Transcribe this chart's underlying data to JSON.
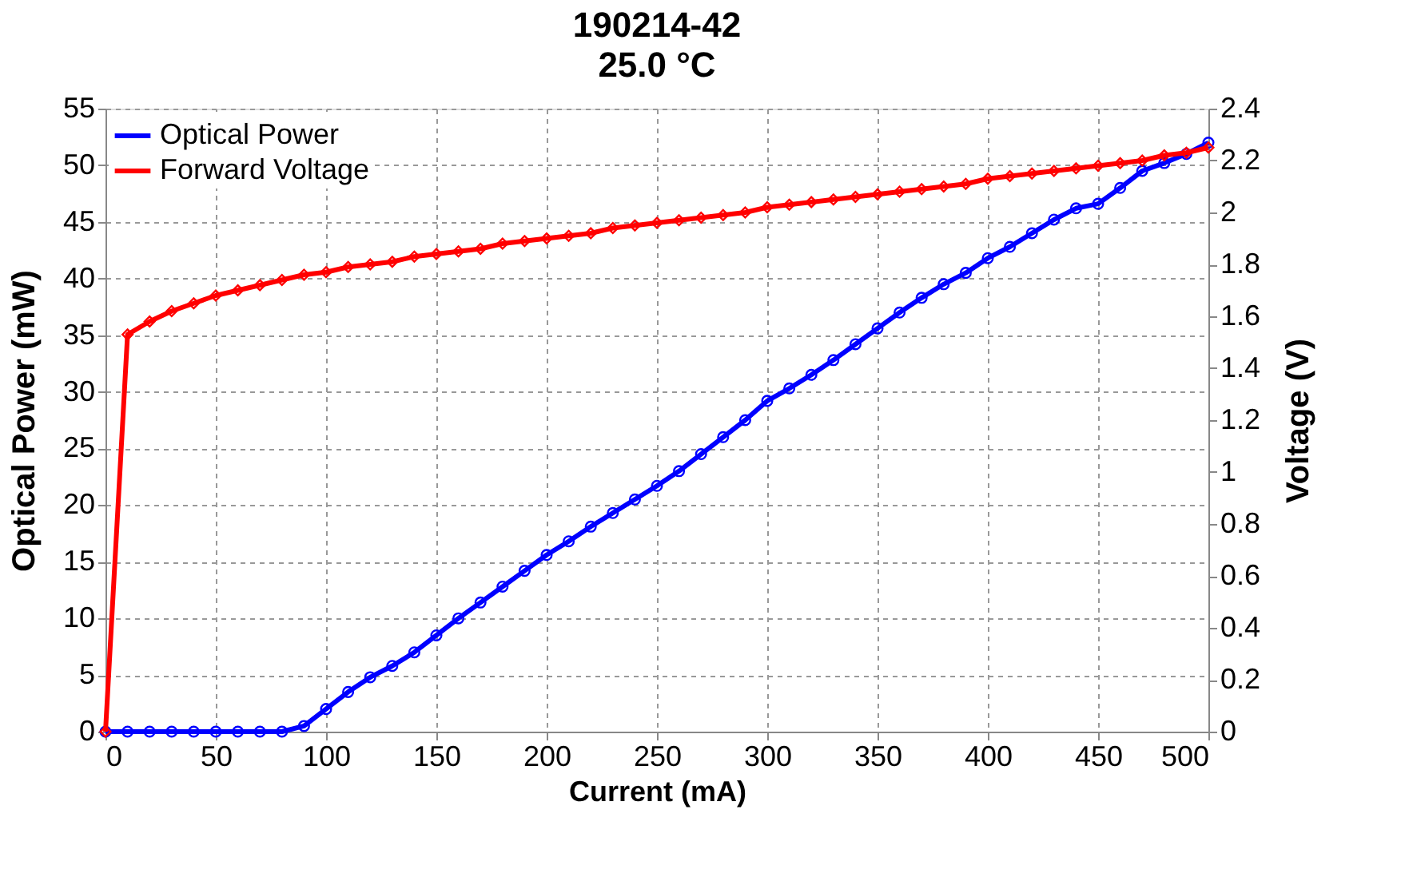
{
  "chart_data": {
    "type": "line",
    "title": "190214-42",
    "subtitle": "25.0 °C",
    "xlabel": "Current (mA)",
    "ylabel": "Optical Power (mW)",
    "y2label": "Voltage (V)",
    "xlim": [
      0,
      500
    ],
    "xticks": [
      0,
      50,
      100,
      150,
      200,
      250,
      300,
      350,
      400,
      450,
      500
    ],
    "ylim": [
      0,
      55
    ],
    "yticks": [
      0,
      5,
      10,
      15,
      20,
      25,
      30,
      35,
      40,
      45,
      50,
      55
    ],
    "y2lim": [
      0,
      2.4
    ],
    "y2ticks": [
      0,
      0.2,
      0.4,
      0.6,
      0.8,
      1,
      1.2,
      1.4,
      1.6,
      1.8,
      2,
      2.2,
      2.4
    ],
    "grid": true,
    "legend": "top left",
    "line_style": "solid",
    "series": [
      {
        "name": "Optical Power",
        "color": "#0000ff",
        "marker": "circle",
        "axis": "y",
        "x": [
          0,
          10,
          20,
          30,
          40,
          50,
          60,
          70,
          80,
          90,
          100,
          110,
          120,
          130,
          140,
          150,
          160,
          170,
          180,
          190,
          200,
          210,
          220,
          230,
          240,
          250,
          260,
          270,
          280,
          290,
          300,
          310,
          320,
          330,
          340,
          350,
          360,
          370,
          380,
          390,
          400,
          410,
          420,
          430,
          440,
          450,
          460,
          470,
          480,
          490,
          500
        ],
        "values": [
          0,
          0,
          0,
          0,
          0,
          0,
          0,
          0,
          0,
          0.5,
          2,
          3.5,
          4.8,
          5.8,
          7,
          8.5,
          10,
          11.4,
          12.8,
          14.2,
          15.6,
          16.8,
          18.1,
          19.3,
          20.5,
          21.7,
          23,
          24.5,
          26,
          27.5,
          29.2,
          30.3,
          31.5,
          32.8,
          34.2,
          35.6,
          37,
          38.3,
          39.5,
          40.5,
          41.8,
          42.8,
          44,
          45.2,
          46.2,
          46.6,
          48,
          49.5,
          50.2,
          51,
          52
        ]
      },
      {
        "name": "Forward Voltage",
        "color": "#ff0000",
        "marker": "diamond",
        "axis": "y2",
        "x": [
          0,
          10,
          20,
          30,
          40,
          50,
          60,
          70,
          80,
          90,
          100,
          110,
          120,
          130,
          140,
          150,
          160,
          170,
          180,
          190,
          200,
          210,
          220,
          230,
          240,
          250,
          260,
          270,
          280,
          290,
          300,
          310,
          320,
          330,
          340,
          350,
          360,
          370,
          380,
          390,
          400,
          410,
          420,
          430,
          440,
          450,
          460,
          470,
          480,
          490,
          500
        ],
        "values": [
          0,
          1.53,
          1.58,
          1.62,
          1.65,
          1.68,
          1.7,
          1.72,
          1.74,
          1.76,
          1.77,
          1.79,
          1.8,
          1.81,
          1.83,
          1.84,
          1.85,
          1.86,
          1.88,
          1.89,
          1.9,
          1.91,
          1.92,
          1.94,
          1.95,
          1.96,
          1.97,
          1.98,
          1.99,
          2.0,
          2.02,
          2.03,
          2.04,
          2.05,
          2.06,
          2.07,
          2.08,
          2.09,
          2.1,
          2.11,
          2.13,
          2.14,
          2.15,
          2.16,
          2.17,
          2.18,
          2.19,
          2.2,
          2.22,
          2.23,
          2.25
        ]
      }
    ]
  }
}
